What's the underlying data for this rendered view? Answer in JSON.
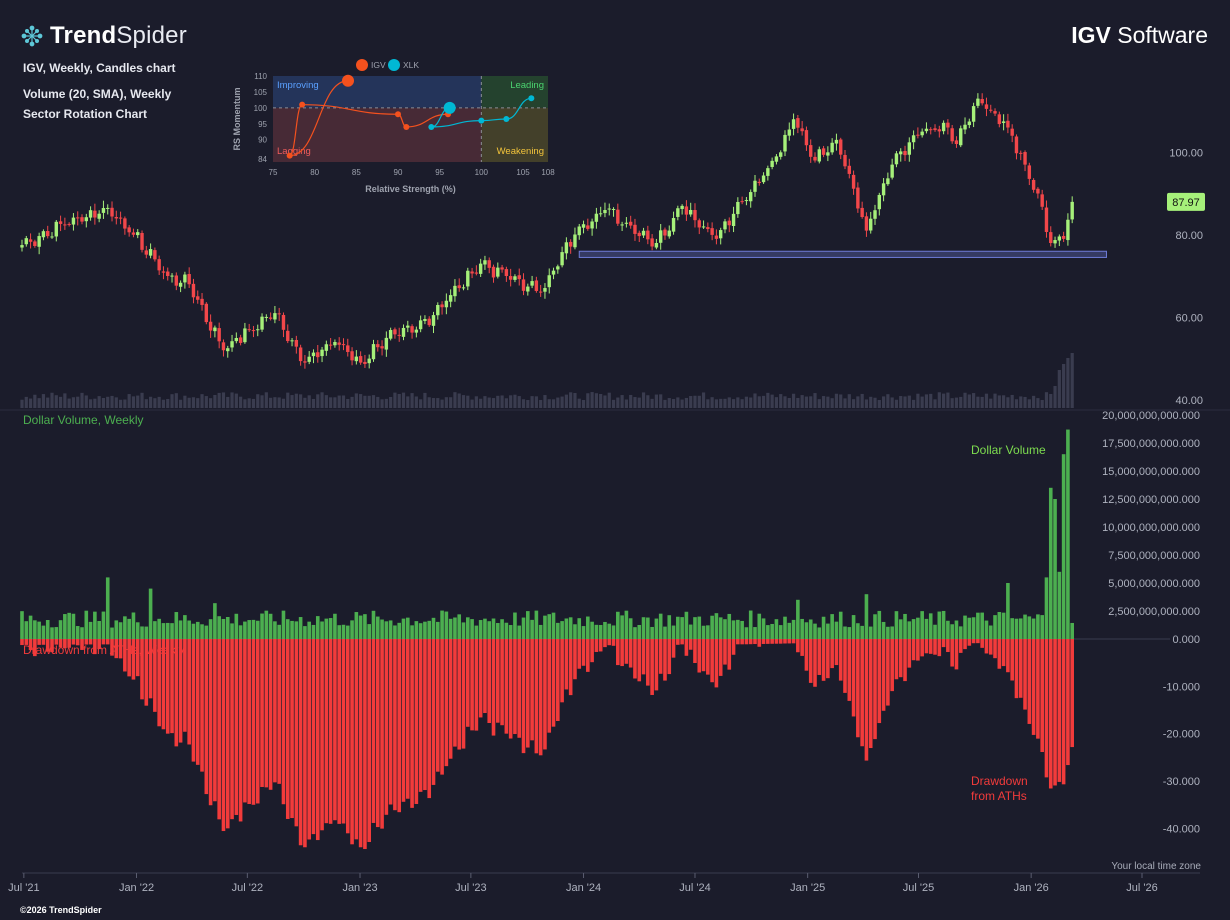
{
  "header": {
    "brand_bold": "Trend",
    "brand_light": "Spider",
    "ticker": "IGV",
    "ticker_name": "Software"
  },
  "chart_info": {
    "line1": "IGV, Weekly, Candles chart",
    "line2": "Volume (20, SMA), Weekly",
    "line3": "Sector Rotation Chart"
  },
  "footer": {
    "copyright": "©2026 TrendSpider",
    "timezone": "Your local time zone"
  },
  "colors": {
    "background": "#1b1c2b",
    "up": "#a6f07a",
    "down": "#f2474a",
    "volume_up": "#4caf50",
    "drawdown": "#f23b3b",
    "support_zone": "#4a5490",
    "price_badge": "#a6f07a",
    "volume_bars": "#3a3c4f"
  },
  "chart_data": [
    {
      "type": "candlestick",
      "title": "IGV, Weekly, Candles chart",
      "x_range": [
        "2021-06-28",
        "2026-07-01"
      ],
      "x_ticks": [
        "Jul '21",
        "Jan '22",
        "Jul '22",
        "Jan '23",
        "Jul '23",
        "Jan '24",
        "Jul '24",
        "Jan '25",
        "Jul '25",
        "Jan '26",
        "Jul '26"
      ],
      "y_ticks": [
        "100.00",
        "80.00",
        "60.00",
        "40.00"
      ],
      "ylim": [
        38,
        118
      ],
      "last_price_label": "87.97",
      "anchors": [
        {
          "date": "2021-06-28",
          "close": 77.5
        },
        {
          "date": "2021-09-06",
          "close": 82.5
        },
        {
          "date": "2021-11-15",
          "close": 86.5
        },
        {
          "date": "2021-12-27",
          "close": 80
        },
        {
          "date": "2022-02-21",
          "close": 70
        },
        {
          "date": "2022-03-28",
          "close": 68
        },
        {
          "date": "2022-05-23",
          "close": 52
        },
        {
          "date": "2022-07-04",
          "close": 57
        },
        {
          "date": "2022-08-15",
          "close": 61
        },
        {
          "date": "2022-10-03",
          "close": 49
        },
        {
          "date": "2022-11-21",
          "close": 54
        },
        {
          "date": "2023-01-02",
          "close": 49
        },
        {
          "date": "2023-02-13",
          "close": 55
        },
        {
          "date": "2023-04-03",
          "close": 57
        },
        {
          "date": "2023-05-22",
          "close": 64
        },
        {
          "date": "2023-07-17",
          "close": 73
        },
        {
          "date": "2023-08-28",
          "close": 70
        },
        {
          "date": "2023-10-23",
          "close": 66
        },
        {
          "date": "2023-12-25",
          "close": 82
        },
        {
          "date": "2024-02-05",
          "close": 86
        },
        {
          "date": "2024-04-29",
          "close": 78
        },
        {
          "date": "2024-06-10",
          "close": 87
        },
        {
          "date": "2024-08-05",
          "close": 79
        },
        {
          "date": "2024-09-16",
          "close": 88
        },
        {
          "date": "2024-11-11",
          "close": 99
        },
        {
          "date": "2024-12-09",
          "close": 108
        },
        {
          "date": "2025-01-13",
          "close": 98
        },
        {
          "date": "2025-02-17",
          "close": 103
        },
        {
          "date": "2025-04-07",
          "close": 81
        },
        {
          "date": "2025-05-19",
          "close": 97
        },
        {
          "date": "2025-07-07",
          "close": 105
        },
        {
          "date": "2025-08-18",
          "close": 106
        },
        {
          "date": "2025-09-01",
          "close": 102
        },
        {
          "date": "2025-10-06",
          "close": 113
        },
        {
          "date": "2025-11-24",
          "close": 106
        },
        {
          "date": "2025-12-22",
          "close": 97
        },
        {
          "date": "2026-01-12",
          "close": 90
        },
        {
          "date": "2026-02-02",
          "close": 78
        },
        {
          "date": "2026-02-23",
          "close": 79
        },
        {
          "date": "2026-03-09",
          "close": 87.97
        }
      ],
      "support_zone": {
        "from": "2023-12-25",
        "to": "2026-05-04",
        "low": 74.5,
        "high": 76
      }
    },
    {
      "type": "bar",
      "title": "Dollar Volume, Weekly",
      "series_label": "Dollar Volume",
      "ylim": [
        0,
        20000000000
      ],
      "y_ticks": [
        "20,000,000,000.000",
        "17,500,000,000.000",
        "15,000,000,000.000",
        "12,500,000,000.000",
        "10,000,000,000.000",
        "7,500,000,000.000",
        "5,000,000,000.000",
        "2,500,000,000.000",
        "0.000"
      ],
      "baseline_value": 1700000000,
      "spikes": [
        {
          "date": "2021-11-15",
          "value": 5500000000
        },
        {
          "date": "2022-01-24",
          "value": 4500000000
        },
        {
          "date": "2022-05-09",
          "value": 3200000000
        },
        {
          "date": "2024-12-16",
          "value": 3500000000
        },
        {
          "date": "2025-04-07",
          "value": 4000000000
        },
        {
          "date": "2025-11-24",
          "value": 5000000000
        },
        {
          "date": "2026-01-26",
          "value": 5500000000
        },
        {
          "date": "2026-02-02",
          "value": 13500000000
        },
        {
          "date": "2026-02-09",
          "value": 12500000000
        },
        {
          "date": "2026-02-16",
          "value": 6000000000
        },
        {
          "date": "2026-02-23",
          "value": 16500000000
        },
        {
          "date": "2026-03-02",
          "value": 18700000000
        }
      ]
    },
    {
      "type": "bar",
      "title": "Drawdown from ATHs, Weekly",
      "series_label": "Drawdown from ATHs",
      "ylim": [
        -45,
        0
      ],
      "y_ticks": [
        "-10.000",
        "-20.000",
        "-30.000",
        "-40.000"
      ],
      "note": "drawdown = close / running peak − 1 (percent)"
    },
    {
      "type": "scatter",
      "title": "Sector Rotation Chart",
      "xlabel": "Relative Strength (%)",
      "ylabel": "RS Momentum",
      "xlim": [
        75,
        108
      ],
      "ylim": [
        83,
        110
      ],
      "x_ticks": [
        75,
        80,
        85,
        90,
        95,
        100,
        105,
        108
      ],
      "y_ticks": [
        110,
        105,
        100,
        95,
        90,
        84
      ],
      "quadrants": [
        "Improving",
        "Leading",
        "Weakening",
        "Lagging"
      ],
      "legend": [
        "IGV",
        "XLK"
      ],
      "series": [
        {
          "name": "IGV",
          "color": "#f4511e",
          "points": [
            [
              84,
              108.5
            ],
            [
              77,
              85
            ],
            [
              78.5,
              101
            ],
            [
              90,
              98
            ],
            [
              91,
              94
            ],
            [
              96,
              98
            ]
          ]
        },
        {
          "name": "XLK",
          "color": "#00b8d4",
          "points": [
            [
              96.2,
              100
            ],
            [
              94,
              94
            ],
            [
              100,
              96
            ],
            [
              103,
              96.5
            ],
            [
              106,
              103
            ]
          ]
        }
      ]
    }
  ]
}
